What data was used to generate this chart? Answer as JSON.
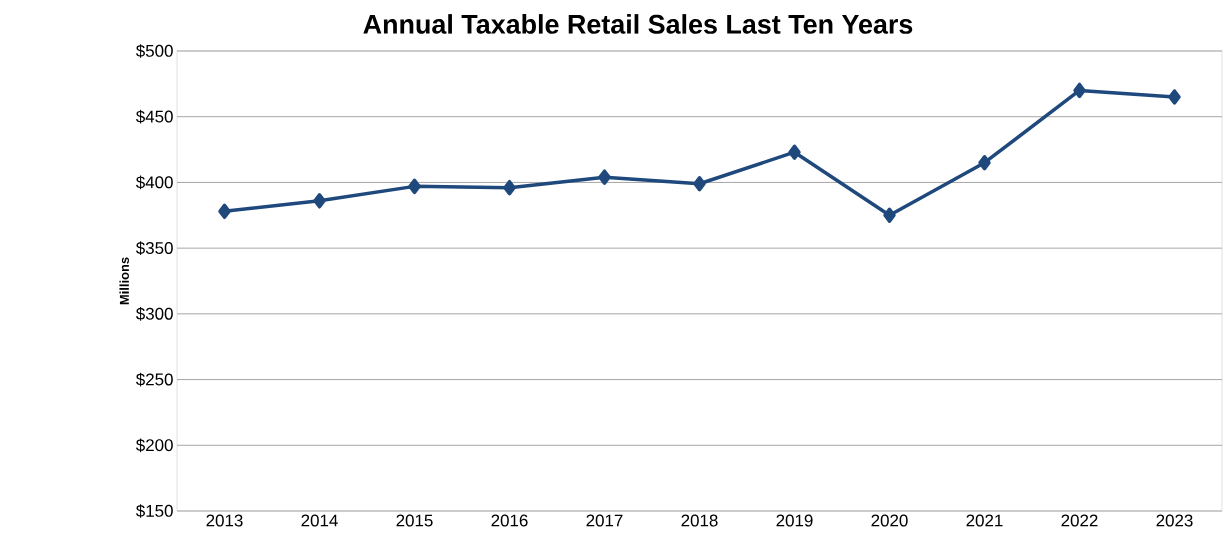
{
  "chart_data": {
    "type": "line",
    "title": "Annual Taxable Retail Sales Last Ten Years",
    "ylabel": "Millions",
    "categories": [
      "2013",
      "2014",
      "2015",
      "2016",
      "2017",
      "2018",
      "2019",
      "2020",
      "2021",
      "2022",
      "2023"
    ],
    "series": [
      {
        "color": "#1f497d",
        "values": [
          378,
          386,
          397,
          396,
          404,
          399,
          423,
          375,
          415,
          470,
          465
        ]
      }
    ],
    "ylim": [
      150,
      500
    ],
    "yticks": [
      {
        "value": 150,
        "label": "$150"
      },
      {
        "value": 200,
        "label": "$200"
      },
      {
        "value": 250,
        "label": "$250"
      },
      {
        "value": 300,
        "label": "$300"
      },
      {
        "value": 350,
        "label": "$350"
      },
      {
        "value": 400,
        "label": "$400"
      },
      {
        "value": 450,
        "label": "$450"
      },
      {
        "value": 500,
        "label": "$500"
      }
    ],
    "grid": "y",
    "marker": "diamond",
    "line_style": "solid"
  }
}
